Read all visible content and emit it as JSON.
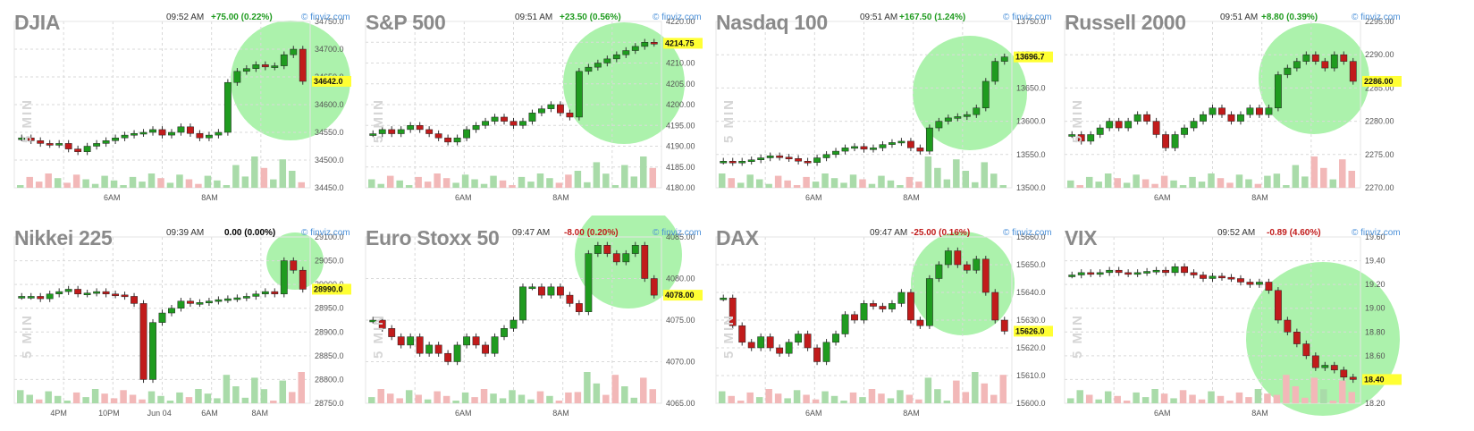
{
  "colors": {
    "up": "#1f9b1f",
    "down": "#c11b1b",
    "neutral": "#000000",
    "highlight": "#90ee90",
    "last_tag": "#ffff33",
    "source": "#4a90d9"
  },
  "source_label": "finviz.com",
  "y_axis_label": "5 MIN",
  "chart_data": [
    {
      "type": "candlestick",
      "title": "DJIA",
      "time": "09:52 AM",
      "change": "+75.00 (0.22%)",
      "direction": "up",
      "yticks": [
        "34750.0",
        "34700.0",
        "34650.0",
        "34600.0",
        "34550.0",
        "34500.0",
        "34450.0"
      ],
      "last_value": "34642.0",
      "xticks": [
        "6AM",
        "8AM"
      ],
      "ylim": [
        34450,
        34750
      ],
      "values": [
        34540,
        34535,
        34530,
        34528,
        34530,
        34520,
        34515,
        34525,
        34530,
        34535,
        34540,
        34545,
        34548,
        34550,
        34555,
        34545,
        34550,
        34560,
        34548,
        34540,
        34545,
        34550,
        34640,
        34660,
        34665,
        34672,
        34668,
        34670,
        34690,
        34700,
        34642
      ]
    },
    {
      "type": "candlestick",
      "title": "S&P 500",
      "time": "09:51 AM",
      "change": "+23.50 (0.56%)",
      "direction": "up",
      "yticks": [
        "4220.00",
        "4215.00",
        "4210.00",
        "4205.00",
        "4200.00",
        "4195.00",
        "4190.00",
        "4185.00",
        "4180.00"
      ],
      "last_value": "4214.75",
      "xticks": [
        "6AM",
        "8AM"
      ],
      "ylim": [
        4180,
        4220
      ],
      "values": [
        4193,
        4194,
        4193,
        4194,
        4195,
        4194,
        4193,
        4192,
        4191,
        4192,
        4194,
        4195,
        4196,
        4197,
        4196,
        4195,
        4196,
        4198,
        4199,
        4200,
        4198,
        4197,
        4208,
        4209,
        4210,
        4211,
        4212,
        4213,
        4214,
        4215,
        4214.75
      ]
    },
    {
      "type": "candlestick",
      "title": "Nasdaq 100",
      "time": "09:51 AM",
      "change": "+167.50 (1.24%)",
      "direction": "up",
      "yticks": [
        "13750.0",
        "13700.0",
        "13650.0",
        "13600.0",
        "13550.0",
        "13500.0"
      ],
      "last_value": "13696.7",
      "xticks": [
        "6AM",
        "8AM"
      ],
      "ylim": [
        13500,
        13750
      ],
      "values": [
        13540,
        13538,
        13540,
        13542,
        13545,
        13548,
        13546,
        13544,
        13540,
        13538,
        13545,
        13550,
        13555,
        13560,
        13562,
        13558,
        13560,
        13565,
        13568,
        13570,
        13560,
        13555,
        13590,
        13600,
        13605,
        13607,
        13610,
        13620,
        13660,
        13690,
        13696.7
      ]
    },
    {
      "type": "candlestick",
      "title": "Russell 2000",
      "time": "09:51 AM",
      "change": "+8.80 (0.39%)",
      "direction": "up",
      "yticks": [
        "2295.00",
        "2290.00",
        "2285.00",
        "2280.00",
        "2275.00",
        "2270.00"
      ],
      "last_value": "2286.00",
      "xticks": [
        "6AM",
        "8AM"
      ],
      "ylim": [
        2270,
        2295
      ],
      "values": [
        2278,
        2277,
        2278,
        2279,
        2280,
        2279,
        2280,
        2281,
        2280,
        2278,
        2276,
        2278,
        2279,
        2280,
        2281,
        2282,
        2281,
        2280,
        2281,
        2282,
        2281,
        2282,
        2287,
        2288,
        2289,
        2290,
        2289,
        2288,
        2290,
        2289,
        2286
      ]
    },
    {
      "type": "candlestick",
      "title": "Nikkei 225",
      "time": "09:39 AM",
      "change": "0.00 (0.00%)",
      "direction": "flat",
      "yticks": [
        "29100.0",
        "29050.0",
        "29000.0",
        "28950.0",
        "28900.0",
        "28850.0",
        "28800.0",
        "28750.0"
      ],
      "last_value": "28990.0",
      "xticks": [
        "4PM",
        "10PM",
        "Jun 04",
        "6AM",
        "8AM"
      ],
      "ylim": [
        28750,
        29100
      ],
      "values": [
        28975,
        28975,
        28970,
        28980,
        28985,
        28990,
        28980,
        28982,
        28985,
        28980,
        28978,
        28975,
        28960,
        28800,
        28920,
        28940,
        28950,
        28965,
        28960,
        28962,
        28965,
        28968,
        28970,
        28972,
        28975,
        28980,
        28985,
        28980,
        29050,
        29030,
        28990
      ]
    },
    {
      "type": "candlestick",
      "title": "Euro Stoxx 50",
      "time": "09:47 AM",
      "change": "-8.00 (0.20%)",
      "direction": "down",
      "yticks": [
        "4085.00",
        "4080.00",
        "4075.00",
        "4070.00",
        "4065.00"
      ],
      "last_value": "4078.00",
      "xticks": [
        "6AM",
        "8AM"
      ],
      "ylim": [
        4065,
        4085
      ],
      "values": [
        4075,
        4074,
        4073,
        4072,
        4073,
        4071,
        4072,
        4071,
        4070,
        4072,
        4073,
        4072,
        4071,
        4073,
        4074,
        4075,
        4079,
        4079,
        4078,
        4079,
        4078,
        4077,
        4076,
        4083,
        4084,
        4083,
        4082,
        4083,
        4084,
        4080,
        4078
      ]
    },
    {
      "type": "candlestick",
      "title": "DAX",
      "time": "09:47 AM",
      "change": "-25.00 (0.16%)",
      "direction": "down",
      "yticks": [
        "15660.0",
        "15650.0",
        "15640.0",
        "15630.0",
        "15620.0",
        "15610.0",
        "15600.0"
      ],
      "last_value": "15626.0",
      "xticks": [
        "6AM",
        "8AM"
      ],
      "ylim": [
        15600,
        15660
      ],
      "values": [
        15638,
        15628,
        15622,
        15620,
        15624,
        15620,
        15618,
        15622,
        15625,
        15620,
        15615,
        15622,
        15625,
        15632,
        15630,
        15636,
        15635,
        15634,
        15636,
        15640,
        15630,
        15628,
        15645,
        15650,
        15655,
        15650,
        15648,
        15652,
        15640,
        15630,
        15626
      ]
    },
    {
      "type": "candlestick",
      "title": "VIX",
      "time": "09:52 AM",
      "change": "-0.89 (4.60%)",
      "direction": "down",
      "yticks": [
        "19.60",
        "19.40",
        "19.20",
        "19.00",
        "18.80",
        "18.60",
        "18.40",
        "18.20"
      ],
      "last_value": "18.40",
      "xticks": [
        "6AM",
        "8AM"
      ],
      "ylim": [
        18.2,
        19.6
      ],
      "values": [
        19.28,
        19.3,
        19.29,
        19.3,
        19.32,
        19.3,
        19.29,
        19.3,
        19.31,
        19.32,
        19.3,
        19.35,
        19.3,
        19.28,
        19.25,
        19.27,
        19.26,
        19.25,
        19.22,
        19.2,
        19.22,
        19.15,
        18.9,
        18.8,
        18.7,
        18.6,
        18.5,
        18.52,
        18.48,
        18.42,
        18.4
      ]
    }
  ]
}
